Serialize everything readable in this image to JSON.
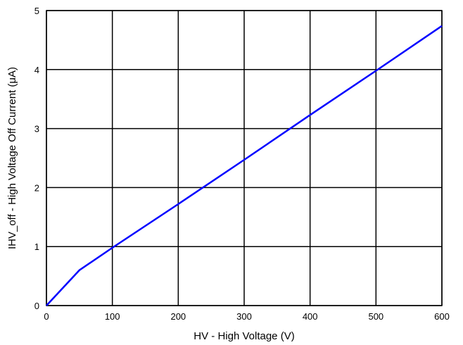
{
  "chart_data": {
    "type": "line",
    "title": "",
    "xlabel": "HV - High Voltage (V)",
    "ylabel": "IHV_off - High Voltage Off Current (μA)",
    "xlim": [
      0,
      600
    ],
    "ylim": [
      0,
      5
    ],
    "x_ticks": [
      0,
      100,
      200,
      300,
      400,
      500,
      600
    ],
    "y_ticks": [
      0,
      1,
      2,
      3,
      4,
      5
    ],
    "x_tick_labels": [
      "0",
      "100",
      "200",
      "300",
      "400",
      "500",
      "600"
    ],
    "y_tick_labels": [
      "0",
      "1",
      "2",
      "3",
      "4",
      "5"
    ],
    "grid": true,
    "series": [
      {
        "color": "#0000ff",
        "x": [
          0,
          50,
          100,
          200,
          300,
          400,
          500,
          600
        ],
        "y": [
          0,
          0.6,
          0.98,
          1.72,
          2.47,
          3.23,
          3.98,
          4.74
        ]
      }
    ]
  }
}
